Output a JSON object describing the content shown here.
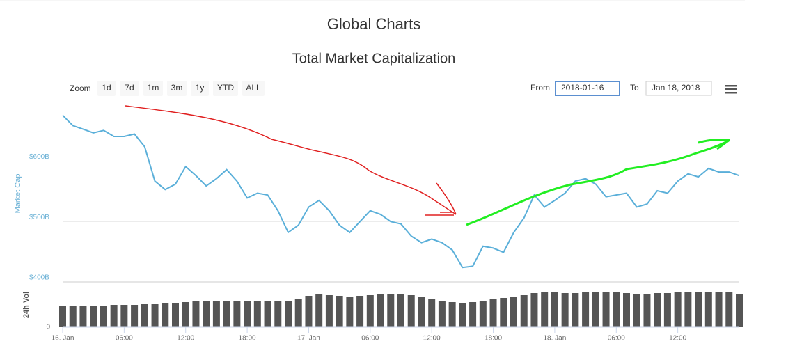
{
  "header": {
    "title": "Global Charts"
  },
  "controls": {
    "zoom_label": "Zoom",
    "zoom": [
      "1d",
      "7d",
      "1m",
      "3m",
      "1y",
      "YTD",
      "ALL"
    ],
    "from_label": "From",
    "from": "2018-01-16",
    "to_label": "To",
    "to": "Jan 18, 2018"
  },
  "chart_data": [
    {
      "type": "line",
      "title": "Total Market Capitalization",
      "ylabel": "Market Cap",
      "color": "#5aafd9",
      "grid": true,
      "x": [
        0,
        1,
        2,
        3,
        4,
        5,
        6,
        7,
        8,
        9,
        10,
        11,
        12,
        13,
        14,
        15,
        16,
        17,
        18,
        19,
        20,
        21,
        22,
        23,
        24,
        25,
        26,
        27,
        28,
        29,
        30,
        31,
        32,
        33,
        34,
        35,
        36,
        37,
        38,
        39,
        40,
        41,
        42,
        43,
        44,
        45,
        46,
        47,
        48,
        49,
        50,
        51,
        52,
        53,
        54,
        55,
        56,
        57,
        58,
        59,
        60,
        61,
        62,
        63,
        64,
        65,
        66
      ],
      "values": [
        676,
        659,
        653,
        647,
        651,
        641,
        641,
        645,
        624,
        567,
        553,
        562,
        591,
        576,
        559,
        571,
        586,
        567,
        539,
        547,
        544,
        518,
        482,
        494,
        524,
        535,
        518,
        494,
        482,
        500,
        518,
        512,
        500,
        496,
        476,
        465,
        471,
        465,
        453,
        424,
        426,
        459,
        456,
        449,
        482,
        506,
        544,
        524,
        535,
        547,
        567,
        571,
        562,
        541,
        544,
        547,
        524,
        529,
        551,
        547,
        567,
        579,
        574,
        588,
        582,
        582,
        576
      ],
      "xlim": [
        0,
        66
      ],
      "ylim": [
        400,
        694
      ],
      "yticks": [
        {
          "value": 400,
          "label": "$400B"
        },
        {
          "value": 500,
          "label": "$500B"
        },
        {
          "value": 600,
          "label": "$600B"
        }
      ]
    },
    {
      "type": "bar",
      "ylabel": "24h Vol",
      "color": "#555555",
      "x": [
        0,
        1,
        2,
        3,
        4,
        5,
        6,
        7,
        8,
        9,
        10,
        11,
        12,
        13,
        14,
        15,
        16,
        17,
        18,
        19,
        20,
        21,
        22,
        23,
        24,
        25,
        26,
        27,
        28,
        29,
        30,
        31,
        32,
        33,
        34,
        35,
        36,
        37,
        38,
        39,
        40,
        41,
        42,
        43,
        44,
        45,
        46,
        47,
        48,
        49,
        50,
        51,
        52,
        53,
        54,
        55,
        56,
        57,
        58,
        59,
        60,
        61,
        62,
        63,
        64,
        65,
        66
      ],
      "values": [
        30,
        30,
        31,
        31,
        31,
        32,
        32,
        32,
        33,
        33,
        34,
        35,
        36,
        37,
        37,
        37,
        37,
        37,
        37,
        37,
        37,
        38,
        38,
        40,
        45,
        47,
        46,
        45,
        44,
        45,
        46,
        47,
        48,
        48,
        46,
        44,
        40,
        38,
        36,
        35,
        36,
        38,
        40,
        42,
        44,
        46,
        49,
        50,
        50,
        49,
        49,
        50,
        51,
        51,
        50,
        49,
        48,
        48,
        49,
        49,
        50,
        50,
        51,
        51,
        51,
        50,
        48
      ],
      "xlim": [
        0,
        66
      ],
      "ylim": [
        0,
        65
      ],
      "yticks": [
        0
      ],
      "xticks": [
        {
          "value": 0,
          "label": "16. Jan"
        },
        {
          "value": 6,
          "label": "06:00"
        },
        {
          "value": 12,
          "label": "12:00"
        },
        {
          "value": 18,
          "label": "18:00"
        },
        {
          "value": 24,
          "label": "17. Jan"
        },
        {
          "value": 30,
          "label": "06:00"
        },
        {
          "value": 36,
          "label": "12:00"
        },
        {
          "value": 42,
          "label": "18:00"
        },
        {
          "value": 48,
          "label": "18. Jan"
        },
        {
          "value": 54,
          "label": "06:00"
        },
        {
          "value": 60,
          "label": "12:00"
        }
      ]
    }
  ]
}
